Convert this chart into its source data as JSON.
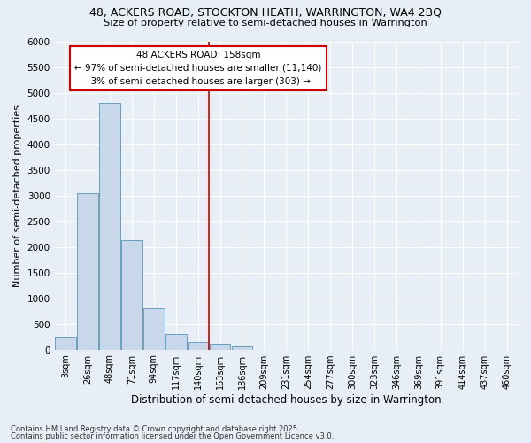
{
  "title1": "48, ACKERS ROAD, STOCKTON HEATH, WARRINGTON, WA4 2BQ",
  "title2": "Size of property relative to semi-detached houses in Warrington",
  "xlabel": "Distribution of semi-detached houses by size in Warrington",
  "ylabel": "Number of semi-detached properties",
  "categories": [
    "3sqm",
    "26sqm",
    "48sqm",
    "71sqm",
    "94sqm",
    "117sqm",
    "140sqm",
    "163sqm",
    "186sqm",
    "209sqm",
    "231sqm",
    "254sqm",
    "277sqm",
    "300sqm",
    "323sqm",
    "346sqm",
    "369sqm",
    "391sqm",
    "414sqm",
    "437sqm",
    "460sqm"
  ],
  "values": [
    250,
    3050,
    4800,
    2130,
    800,
    310,
    150,
    110,
    55,
    0,
    0,
    0,
    0,
    0,
    0,
    0,
    0,
    0,
    0,
    0,
    0
  ],
  "bar_color": "#c8d8ea",
  "bar_edge_color": "#6a9fc0",
  "red_line_index": 7,
  "property_size": "158sqm",
  "pct_smaller": 97,
  "count_smaller": "11,140",
  "pct_larger": 3,
  "count_larger": 303,
  "background_color": "#e8eef5",
  "grid_color": "#ffffff",
  "ylim": [
    0,
    6000
  ],
  "yticks": [
    0,
    500,
    1000,
    1500,
    2000,
    2500,
    3000,
    3500,
    4000,
    4500,
    5000,
    5500,
    6000
  ],
  "footer1": "Contains HM Land Registry data © Crown copyright and database right 2025.",
  "footer2": "Contains public sector information licensed under the Open Government Licence v3.0."
}
